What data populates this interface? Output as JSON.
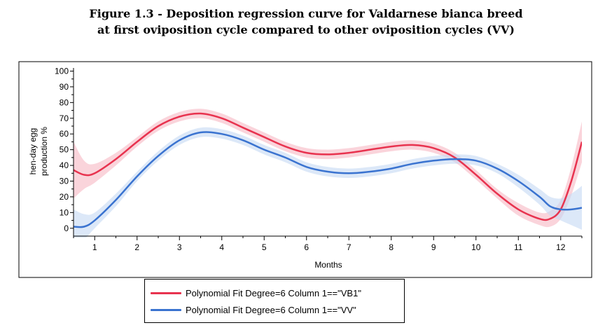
{
  "figure": {
    "caption_line1": "Figure 1.3 - Deposition regression curve for Valdarnese bianca breed",
    "caption_line2": "at first oviposition cycle compared to other oviposition cycles (VV)"
  },
  "chart_data": {
    "type": "line",
    "title": "",
    "xlabel": "Months",
    "ylabel_line1": "hen-day egg",
    "ylabel_line2": "production %",
    "xlim": [
      0.5,
      12.5
    ],
    "ylim": [
      -5,
      102
    ],
    "x_ticks": [
      1,
      2,
      3,
      4,
      5,
      6,
      7,
      8,
      9,
      10,
      11,
      12
    ],
    "y_ticks": [
      0,
      10,
      20,
      30,
      40,
      50,
      60,
      70,
      80,
      90,
      100
    ],
    "grid": false,
    "legend_position": "bottom",
    "confidence_band": true,
    "series": [
      {
        "name": "Polynomial Fit Degree=6 Column 1==\"VB1\"",
        "color": "#e8334f",
        "band_color": "#f6b8c3",
        "x": [
          0.5,
          0.75,
          1,
          1.5,
          2,
          2.5,
          3,
          3.5,
          4,
          4.5,
          5,
          5.5,
          6,
          6.5,
          7,
          7.5,
          8,
          8.5,
          9,
          9.5,
          10,
          10.5,
          11,
          11.5,
          11.75,
          12,
          12.25,
          12.5
        ],
        "y": [
          37,
          34,
          35,
          44,
          55,
          65,
          71,
          73,
          70,
          64,
          58,
          52,
          48,
          47,
          48,
          50,
          52,
          53,
          51,
          45,
          34,
          22,
          12,
          6,
          6,
          12,
          30,
          55
        ],
        "band_halfwidth": [
          18,
          9,
          6,
          4,
          3,
          3,
          3,
          3,
          3,
          3,
          3,
          3,
          3,
          3,
          3,
          3,
          3,
          3,
          3,
          3,
          3,
          3,
          4,
          4,
          5,
          6,
          9,
          13
        ]
      },
      {
        "name": "Polynomial Fit Degree=6 Column 1==\"VV\"",
        "color": "#3a73d0",
        "band_color": "#c5d8f4",
        "x": [
          0.5,
          0.75,
          1,
          1.5,
          2,
          2.5,
          3,
          3.5,
          4,
          4.5,
          5,
          5.5,
          6,
          6.5,
          7,
          7.5,
          8,
          8.5,
          9,
          9.5,
          10,
          10.5,
          11,
          11.5,
          11.75,
          12,
          12.25,
          12.5
        ],
        "y": [
          1,
          1,
          5,
          18,
          33,
          46,
          56,
          61,
          60,
          56,
          50,
          45,
          39,
          36,
          35,
          36,
          38,
          41,
          43,
          44,
          43,
          38,
          30,
          20,
          14,
          12,
          12,
          13
        ],
        "band_halfwidth": [
          11,
          8,
          5,
          4,
          3,
          3,
          3,
          3,
          3,
          3,
          3,
          3,
          3,
          3,
          3,
          3,
          3,
          3,
          3,
          3,
          3,
          3,
          4,
          5,
          6,
          7,
          10,
          14
        ]
      }
    ]
  }
}
